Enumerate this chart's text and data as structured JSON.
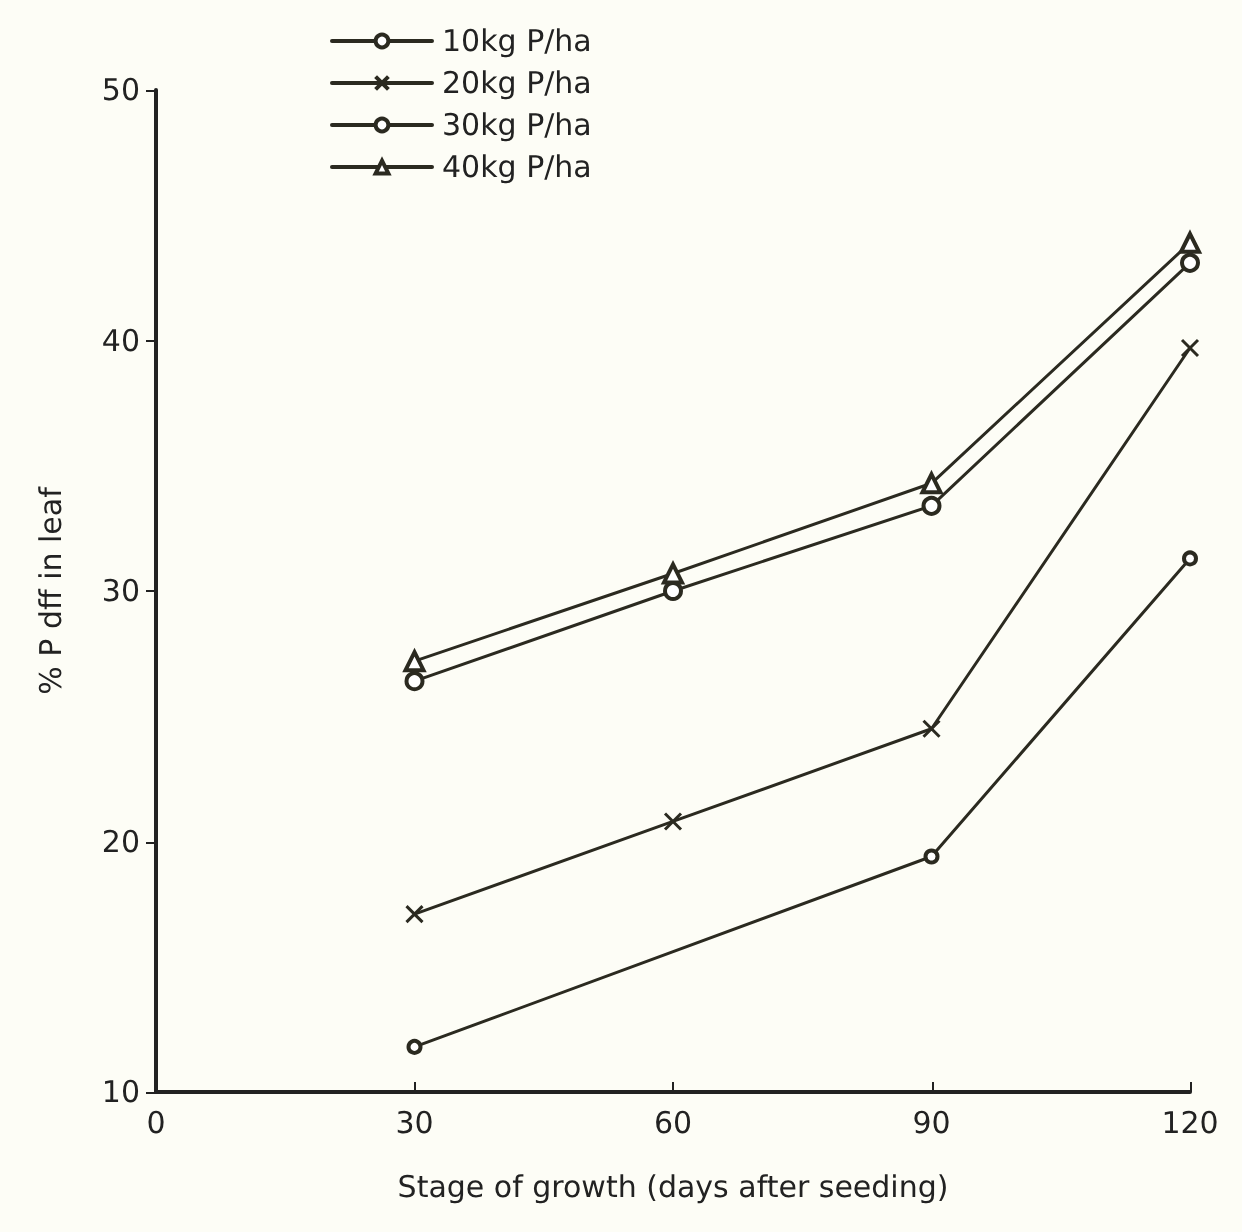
{
  "chart_data": {
    "type": "line",
    "xlabel": "Stage of growth (days after seeding)",
    "ylabel": "% P dff in leaf",
    "x": [
      30,
      60,
      90,
      120
    ],
    "xlim": [
      0,
      120
    ],
    "xticks": [
      0,
      30,
      60,
      90,
      120
    ],
    "ylim": [
      10,
      50
    ],
    "yticks": [
      10,
      20,
      30,
      40,
      50
    ],
    "grid": false,
    "legend": "top",
    "line_style": "solid",
    "series": [
      {
        "name": "10kg P/ha",
        "color": "#2b2a20",
        "marker": "circle",
        "x": [
          30,
          90,
          120
        ],
        "values": [
          11.8,
          19.4,
          31.3
        ]
      },
      {
        "name": "20kg P/ha",
        "color": "#2b2a20",
        "marker": "cross",
        "values": [
          17.1,
          20.8,
          24.5,
          39.7
        ]
      },
      {
        "name": "30kg P/ha",
        "color": "#2b2a20",
        "marker": "circle",
        "values": [
          26.4,
          30.0,
          33.4,
          43.1
        ]
      },
      {
        "name": "40kg P/ha",
        "color": "#2b2a20",
        "marker": "triangle",
        "values": [
          27.2,
          30.7,
          34.3,
          43.9
        ]
      }
    ]
  }
}
